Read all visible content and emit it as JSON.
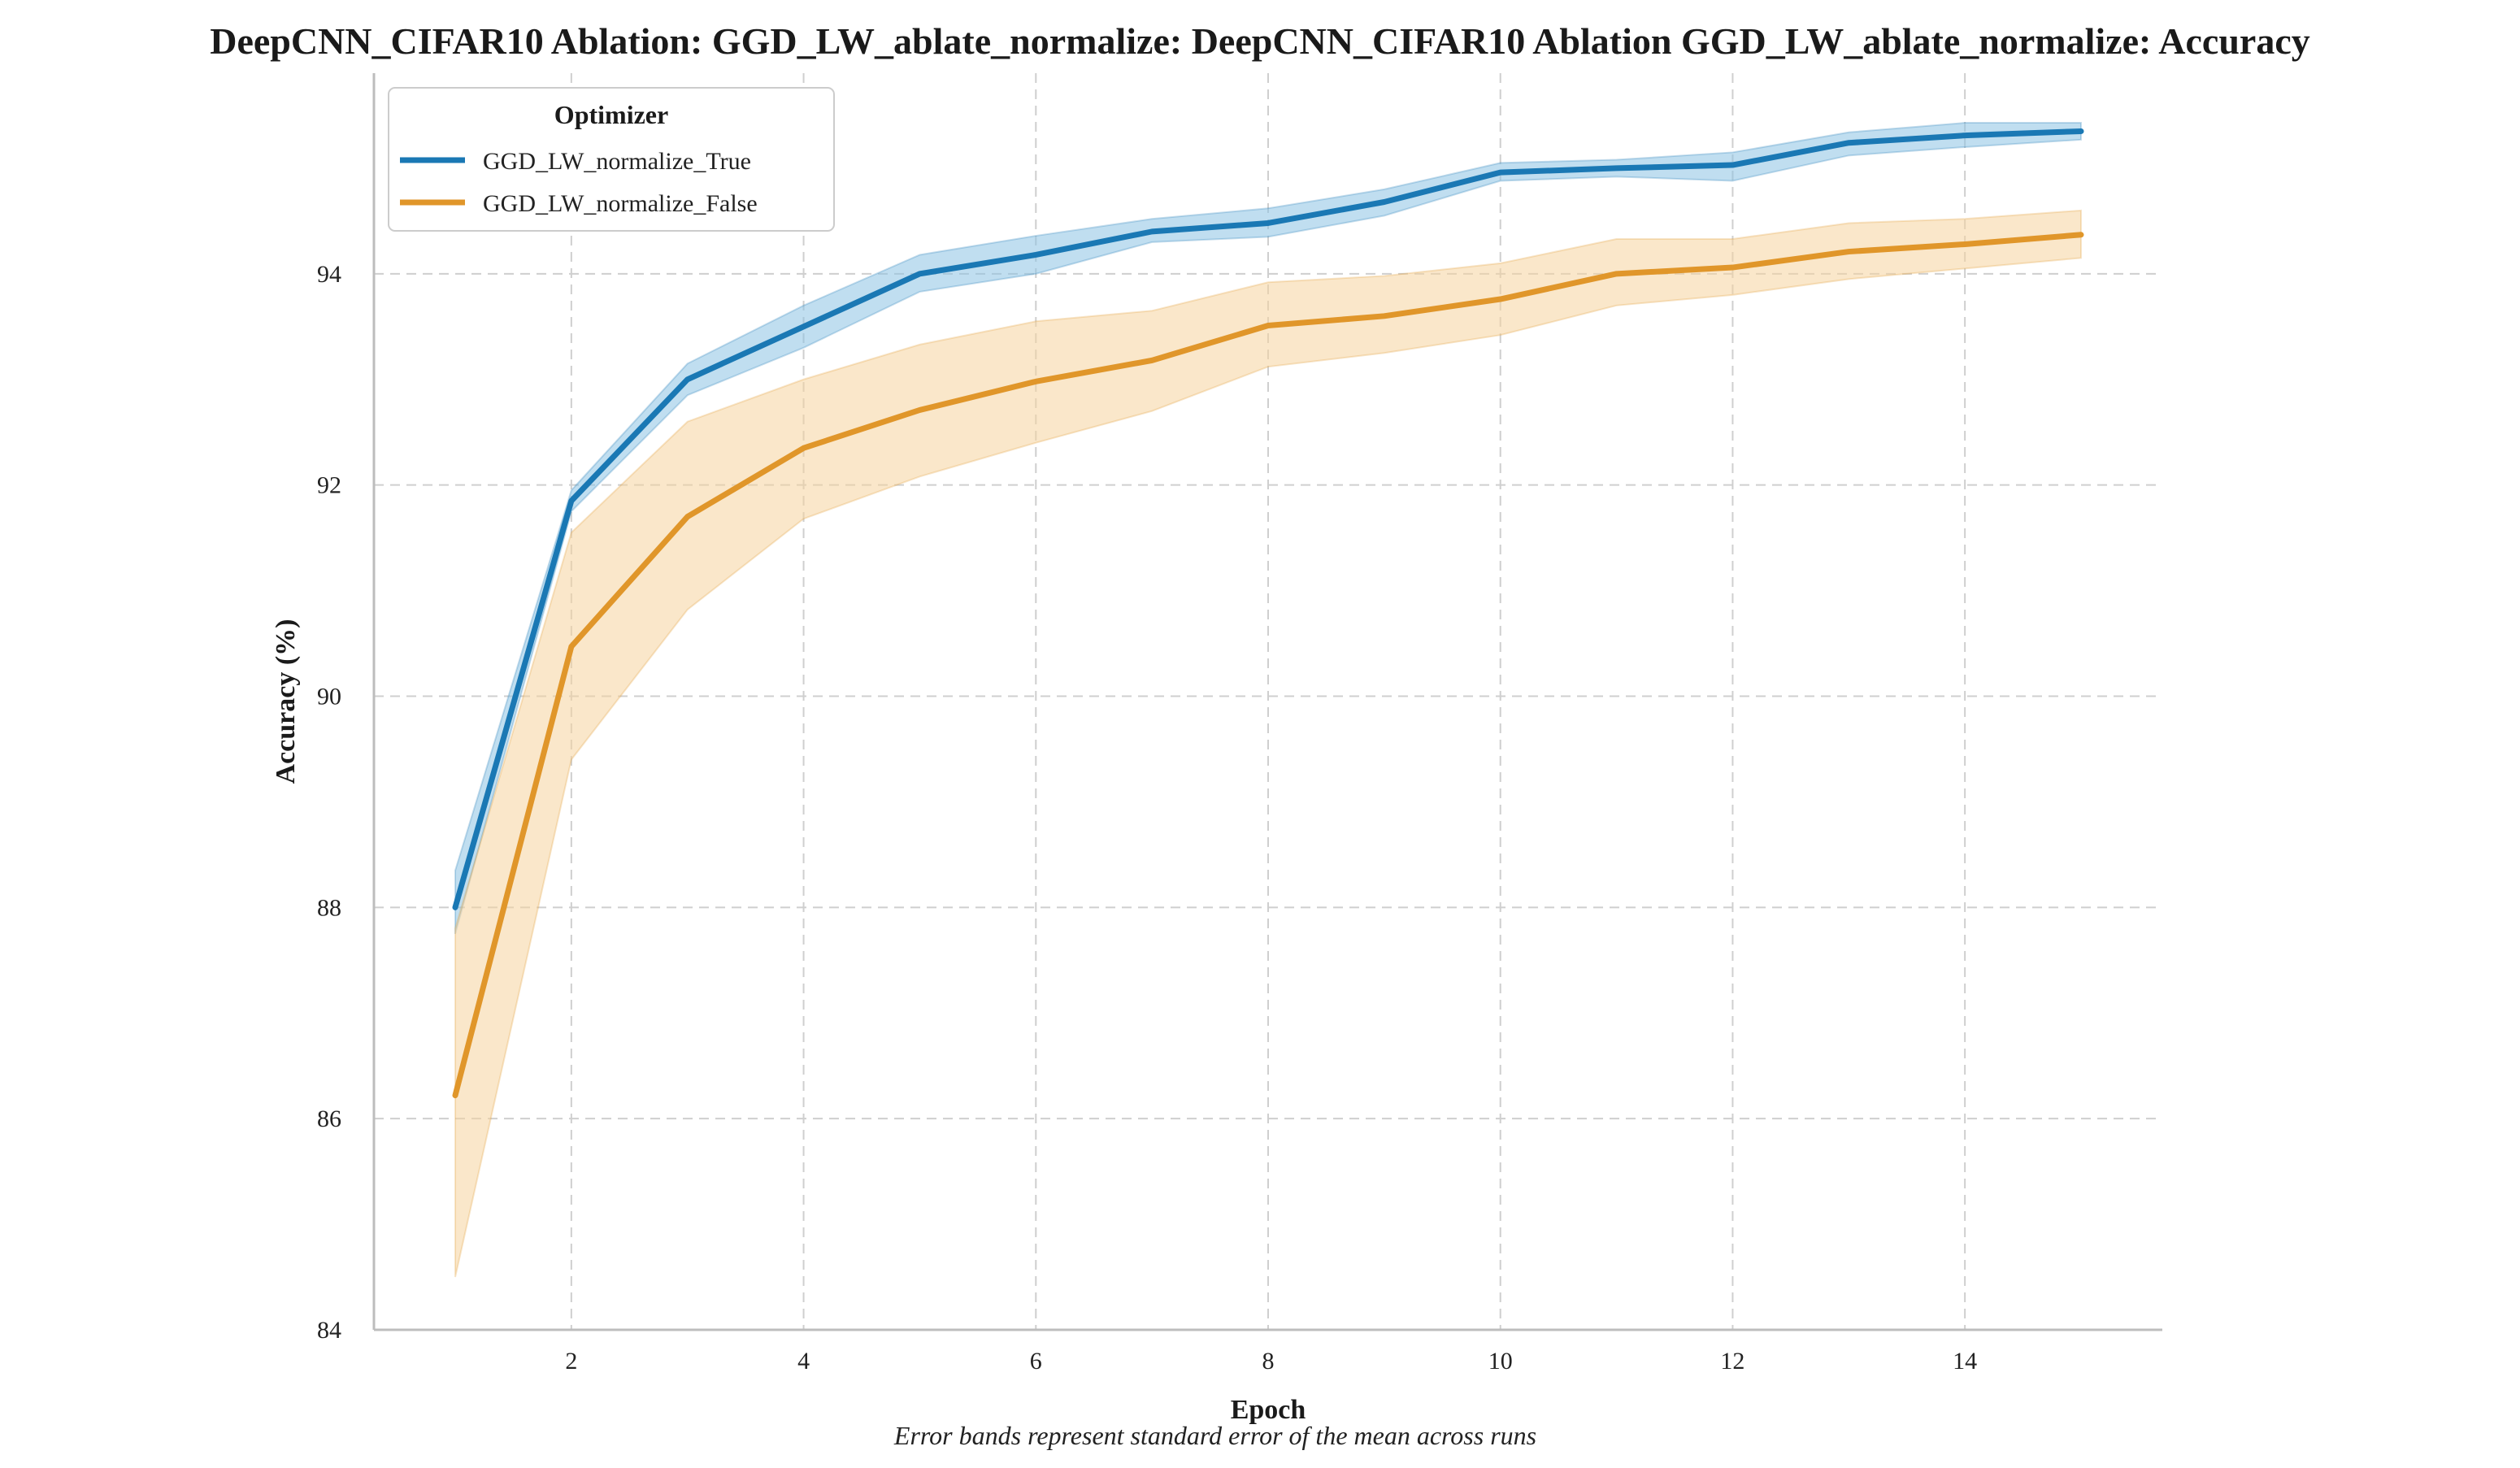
{
  "chart_data": {
    "type": "line",
    "title": "DeepCNN_CIFAR10 Ablation: GGD_LW_ablate_normalize: DeepCNN_CIFAR10 Ablation GGD_LW_ablate_normalize: Accuracy",
    "xlabel": "Epoch",
    "ylabel": "Accuracy (%)",
    "caption": "Error bands represent standard error of the mean across runs",
    "xlim": [
      0.3,
      15.7
    ],
    "ylim": [
      84,
      95.9
    ],
    "xticks": [
      2,
      4,
      6,
      8,
      10,
      12,
      14
    ],
    "yticks": [
      84,
      86,
      88,
      90,
      92,
      94
    ],
    "grid": true,
    "legend": {
      "title": "Optimizer",
      "placement": "top-left"
    },
    "x": [
      1,
      2,
      3,
      4,
      5,
      6,
      7,
      8,
      9,
      10,
      11,
      12,
      13,
      14,
      15
    ],
    "series": [
      {
        "name": "GGD_LW_normalize_True",
        "color": "#1a78b4",
        "band_color": "#8cc2e3",
        "values": [
          88.0,
          91.85,
          93.0,
          93.5,
          94.0,
          94.18,
          94.4,
          94.48,
          94.68,
          94.96,
          95.0,
          95.03,
          95.24,
          95.31,
          95.35
        ],
        "lower": [
          87.75,
          91.75,
          92.85,
          93.3,
          93.83,
          94.0,
          94.3,
          94.35,
          94.55,
          94.88,
          94.92,
          94.88,
          95.12,
          95.2,
          95.27
        ],
        "upper": [
          88.35,
          91.95,
          93.15,
          93.7,
          94.18,
          94.36,
          94.52,
          94.62,
          94.8,
          95.05,
          95.08,
          95.15,
          95.34,
          95.43,
          95.43
        ]
      },
      {
        "name": "GGD_LW_normalize_False",
        "color": "#e0962a",
        "band_color": "#f5d49e",
        "values": [
          86.22,
          90.47,
          91.7,
          92.35,
          92.71,
          92.98,
          93.18,
          93.51,
          93.6,
          93.76,
          94.0,
          94.06,
          94.21,
          94.28,
          94.37
        ],
        "lower": [
          84.5,
          89.4,
          90.82,
          91.68,
          92.08,
          92.4,
          92.7,
          93.12,
          93.25,
          93.42,
          93.7,
          93.8,
          93.95,
          94.05,
          94.15
        ],
        "upper": [
          87.8,
          91.55,
          92.6,
          93.0,
          93.33,
          93.55,
          93.65,
          93.92,
          93.98,
          94.1,
          94.33,
          94.33,
          94.48,
          94.52,
          94.6
        ]
      }
    ]
  }
}
